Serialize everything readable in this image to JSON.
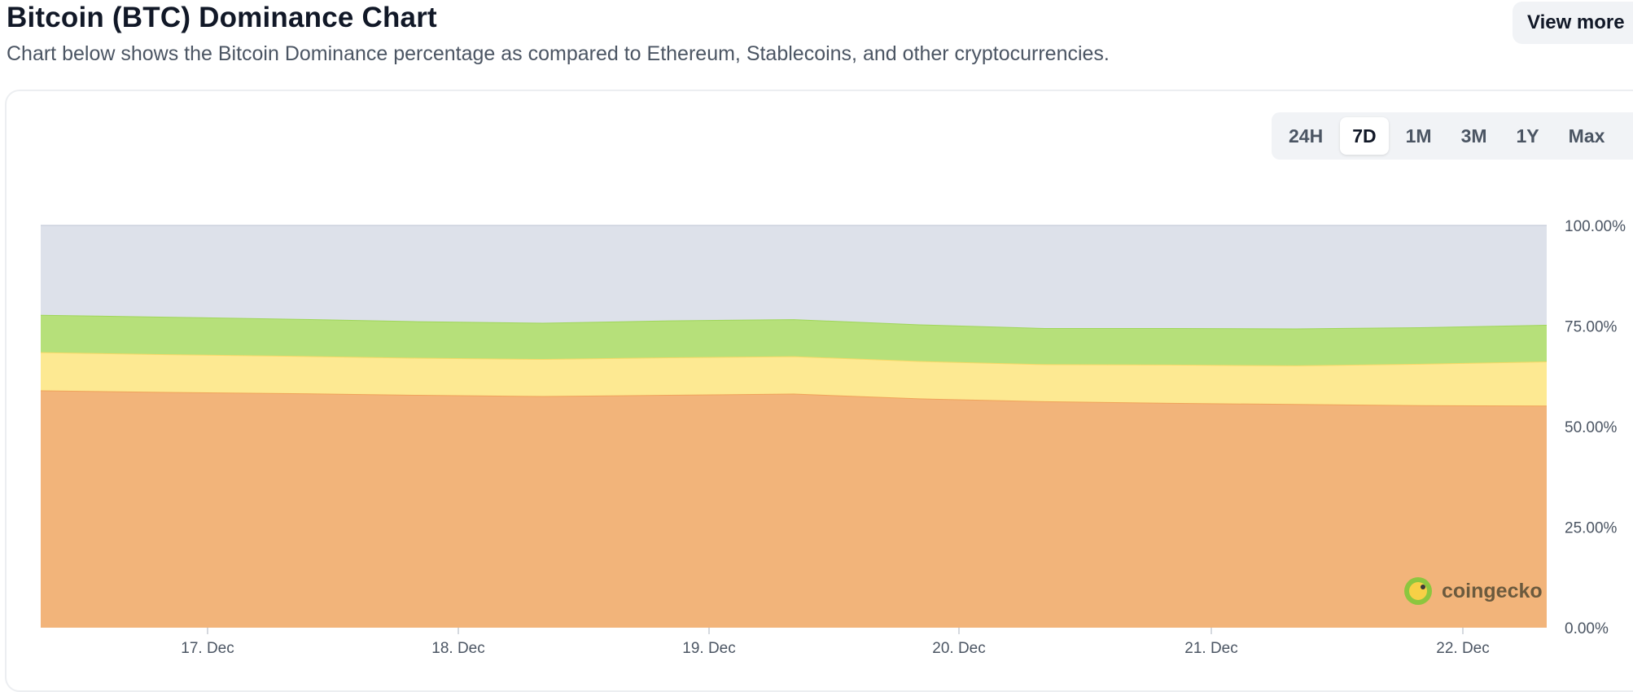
{
  "header": {
    "title": "Bitcoin (BTC) Dominance Chart",
    "subtitle": "Chart below shows the Bitcoin Dominance percentage as compared to Ethereum, Stablecoins, and other cryptocurrencies.",
    "view_more_label": "View more"
  },
  "range_tabs": [
    {
      "label": "24H",
      "active": false
    },
    {
      "label": "7D",
      "active": true
    },
    {
      "label": "1M",
      "active": false
    },
    {
      "label": "3M",
      "active": false
    },
    {
      "label": "1Y",
      "active": false
    },
    {
      "label": "Max",
      "active": false
    }
  ],
  "watermark": {
    "text": "coingecko",
    "icon": "gecko-logo-icon"
  },
  "chart_data": {
    "type": "area",
    "stacked": true,
    "x_ticks": [
      "17. Dec",
      "18. Dec",
      "19. Dec",
      "20. Dec",
      "21. Dec",
      "22. Dec"
    ],
    "y_ticks": [
      "0.00%",
      "25.00%",
      "50.00%",
      "75.00%",
      "100.00%"
    ],
    "ylim": [
      0,
      100
    ],
    "y_axis_side": "right",
    "grid": false,
    "x": [
      "16. Dec 12:00",
      "17. Dec 00:00",
      "17. Dec 12:00",
      "18. Dec 00:00",
      "18. Dec 12:00",
      "19. Dec 00:00",
      "19. Dec 12:00",
      "20. Dec 00:00",
      "20. Dec 12:00",
      "21. Dec 00:00",
      "21. Dec 12:00",
      "22. Dec 00:00",
      "22. Dec 08:00"
    ],
    "series": [
      {
        "color": "#f2b47a",
        "values": [
          59.0,
          58.6,
          58.3,
          57.9,
          57.6,
          57.9,
          58.2,
          57.0,
          56.3,
          55.9,
          55.6,
          55.3,
          55.2
        ]
      },
      {
        "color": "#fde992",
        "values": [
          9.5,
          9.4,
          9.3,
          9.2,
          9.2,
          9.3,
          9.3,
          9.3,
          9.2,
          9.5,
          9.6,
          10.3,
          11.0
        ]
      },
      {
        "color": "#b6e07a",
        "values": [
          9.3,
          9.3,
          9.2,
          9.1,
          9.0,
          9.2,
          9.2,
          9.1,
          9.0,
          9.1,
          9.2,
          9.1,
          9.1
        ]
      },
      {
        "color": "#dde1ea",
        "values": [
          22.2,
          22.7,
          23.2,
          23.8,
          24.2,
          23.6,
          23.3,
          24.6,
          25.5,
          25.5,
          25.6,
          25.3,
          24.7
        ]
      }
    ]
  }
}
